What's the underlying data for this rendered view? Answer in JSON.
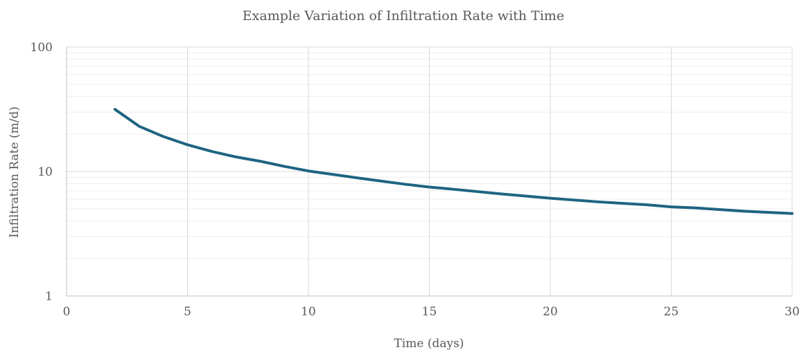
{
  "chart_data": {
    "type": "line",
    "title": "Example Variation of Infiltration Rate with Time",
    "xlabel": "Time (days)",
    "ylabel": "Infiltration Rate (m/d)",
    "xlim": [
      0,
      30
    ],
    "ylim": [
      1,
      100
    ],
    "y_scale": "log",
    "x_ticks": [
      0,
      5,
      10,
      15,
      20,
      25,
      30
    ],
    "x_tick_labels": [
      "0",
      "5",
      "10",
      "15",
      "20",
      "25",
      "30"
    ],
    "y_ticks": [
      1,
      10,
      100
    ],
    "y_tick_labels": [
      "1",
      "10",
      "100"
    ],
    "grid": true,
    "legend": "none",
    "series_color": "#1f6481",
    "series": [
      {
        "x": [
          2,
          3,
          4,
          5,
          6,
          7,
          8,
          9,
          10,
          12,
          14,
          15,
          16,
          18,
          20,
          22,
          24,
          25,
          26,
          28,
          30
        ],
        "y": [
          31.6,
          23.1,
          19.1,
          16.4,
          14.5,
          13.1,
          12.1,
          11.0,
          10.1,
          8.9,
          7.9,
          7.5,
          7.2,
          6.6,
          6.1,
          5.7,
          5.4,
          5.2,
          5.1,
          4.8,
          4.6
        ]
      }
    ]
  }
}
